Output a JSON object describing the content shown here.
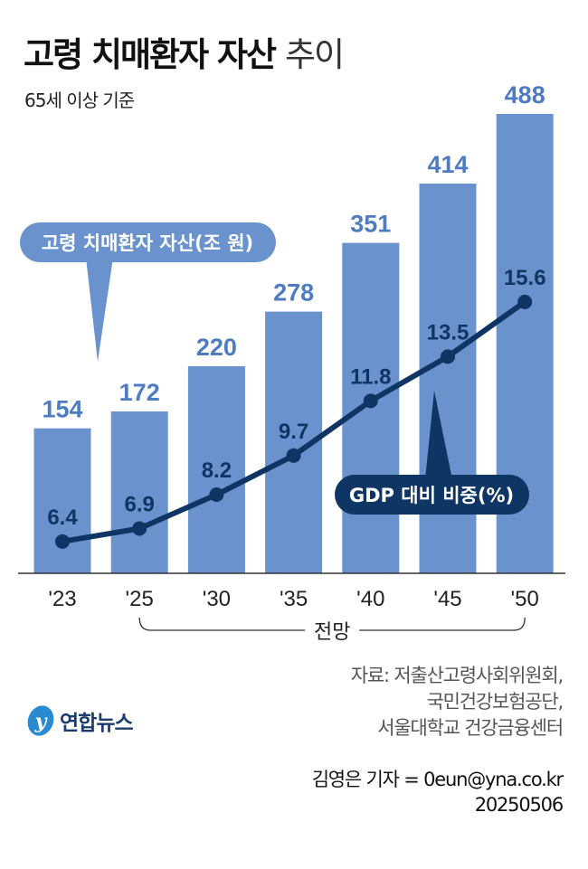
{
  "title": {
    "bold": "고령 치매환자 자산",
    "light": "추이"
  },
  "subtitle": "65세 이상 기준",
  "chart_data": {
    "type": "bar+line",
    "categories": [
      "'23",
      "'25",
      "'30",
      "'35",
      "'40",
      "'45",
      "'50"
    ],
    "series": [
      {
        "name": "고령 치매환자 자산(조 원)",
        "type": "bar",
        "values": [
          154,
          172,
          220,
          278,
          351,
          414,
          488
        ],
        "color": "#6a93cd"
      },
      {
        "name": "GDP 대비 비중(%)",
        "type": "line",
        "values": [
          6.4,
          6.9,
          8.2,
          9.7,
          11.8,
          13.5,
          15.6
        ],
        "color": "#0f3565"
      }
    ],
    "bracket_label": "전망",
    "bracket_range": [
      "'25",
      "'50"
    ],
    "grid": false
  },
  "source": [
    "자료: 저출산고령사회위원회,",
    "국민건강보험공단,",
    "서울대학교 건강금융센터"
  ],
  "credit": [
    "김영은 기자 = 0eun@yna.co.kr",
    "20250506"
  ],
  "logo": "연합뉴스",
  "colors": {
    "bar": "#6a93cd",
    "bar_label": "#4f7cc0",
    "line": "#0f3565",
    "callout_bar": "#6a93cd",
    "callout_line": "#0f3565"
  }
}
